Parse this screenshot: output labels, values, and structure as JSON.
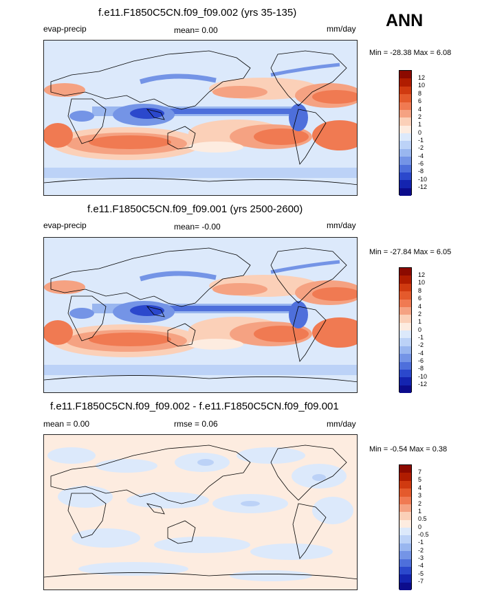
{
  "season": "ANN",
  "panels": [
    {
      "title": "f.e11.F1850C5CN.f09_f09.002 (yrs 35-135)",
      "left_label": "evap-precip",
      "center_label": "mean=   0.00",
      "right_label": "mm/day",
      "minmax": "Min = -28.38 Max =   6.08",
      "type": "field",
      "colorbar_labels": [
        "12",
        "10",
        "8",
        "6",
        "4",
        "2",
        "1",
        "0",
        "-1",
        "-2",
        "-4",
        "-6",
        "-8",
        "-10",
        "-12"
      ]
    },
    {
      "title": "f.e11.F1850C5CN.f09_f09.001 (yrs 2500-2600)",
      "left_label": "evap-precip",
      "center_label": "mean=  -0.00",
      "right_label": "mm/day",
      "minmax": "Min = -27.84 Max =   6.05",
      "type": "field",
      "colorbar_labels": [
        "12",
        "10",
        "8",
        "6",
        "4",
        "2",
        "1",
        "0",
        "-1",
        "-2",
        "-4",
        "-6",
        "-8",
        "-10",
        "-12"
      ]
    },
    {
      "title": "f.e11.F1850C5CN.f09_f09.002 - f.e11.F1850C5CN.f09_f09.001",
      "left_label": "mean =   0.00",
      "center_label": "rmse =   0.06",
      "right_label": "mm/day",
      "minmax": "Min =  -0.54 Max =   0.38",
      "type": "diff",
      "colorbar_labels": [
        "7",
        "5",
        "4",
        "3",
        "2",
        "1",
        "0.5",
        "0",
        "-0.5",
        "-1",
        "-2",
        "-3",
        "-4",
        "-5",
        "-7"
      ]
    }
  ],
  "colors": {
    "field_scale": [
      "#8c0a00",
      "#b01c00",
      "#d03a10",
      "#e45a2c",
      "#f07a52",
      "#f5a282",
      "#fbd0b8",
      "#fdece0",
      "#dce9fb",
      "#bcd2f7",
      "#99b6ef",
      "#7494e6",
      "#4e6fdb",
      "#2b48cc",
      "#1424b0",
      "#0c0c8c"
    ],
    "diff_scale": [
      "#8c0a00",
      "#b01c00",
      "#d03a10",
      "#e45a2c",
      "#f07a52",
      "#f5a282",
      "#fbd0b8",
      "#fdece0",
      "#dce9fb",
      "#bcd2f7",
      "#99b6ef",
      "#7494e6",
      "#4e6fdb",
      "#2b48cc",
      "#1424b0",
      "#0c0c8c"
    ]
  }
}
